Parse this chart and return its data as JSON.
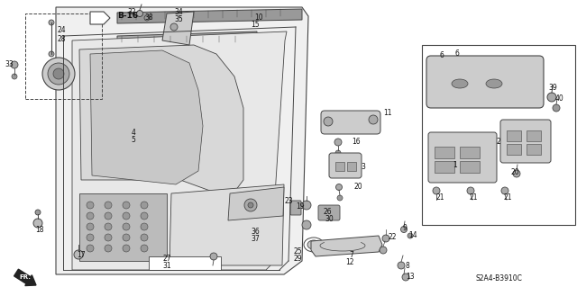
{
  "bg_color": "#ffffff",
  "diagram_code": "S2A4-B3910C",
  "line_color": "#444444",
  "label_color": "#111111",
  "font_size": 5.5
}
